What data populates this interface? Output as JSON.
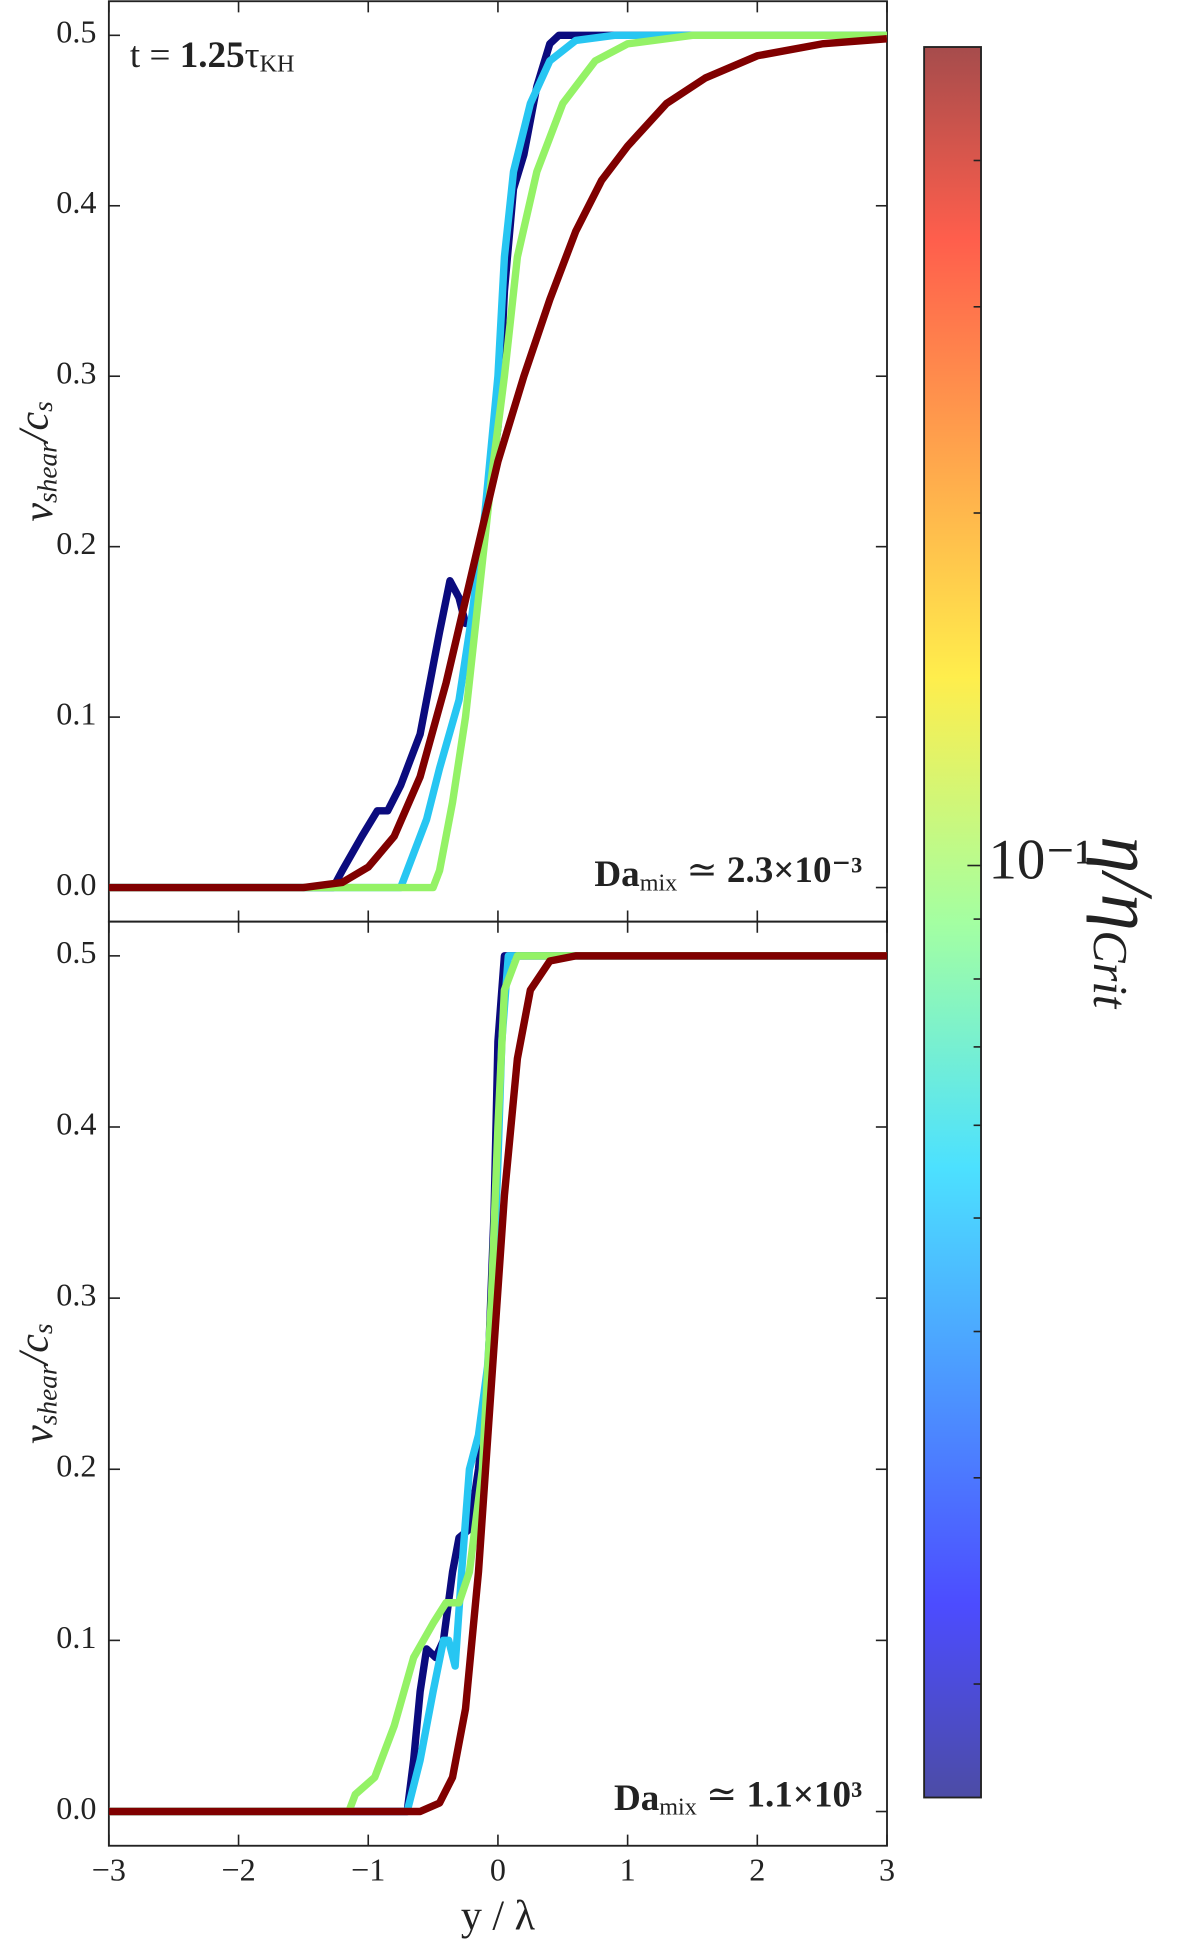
{
  "chart_data": [
    {
      "type": "line",
      "ylabel": [
        "v",
        "shear",
        "/c",
        "s"
      ],
      "annotation": [
        "t = ",
        "1.25",
        "τ",
        "KH"
      ],
      "note": [
        "Da",
        "mix",
        " ≃ ",
        "2.3×10⁻³"
      ],
      "ylim": [
        -0.02,
        0.52
      ],
      "yticks": [
        {
          "value": 0,
          "label": "0.0"
        },
        0.1,
        0.2,
        0.3,
        0.4,
        0.5
      ],
      "series": [
        {
          "color": "#0b0b7e",
          "x": [
            -3,
            -1.27,
            -1.2,
            -1.05,
            -0.93,
            -0.85,
            -0.75,
            -0.6,
            -0.5,
            -0.45,
            -0.37,
            -0.3,
            -0.25,
            -0.18,
            -0.1,
            0,
            0.05,
            0.12,
            0.2,
            0.3,
            0.4,
            0.47,
            3
          ],
          "values": [
            0,
            0,
            0.01,
            0.03,
            0.045,
            0.045,
            0.06,
            0.09,
            0.13,
            0.15,
            0.18,
            0.17,
            0.155,
            0.155,
            0.21,
            0.27,
            0.35,
            0.41,
            0.43,
            0.47,
            0.495,
            0.5,
            0.5
          ]
        },
        {
          "color": "#27c6f2",
          "x": [
            -3,
            -0.75,
            -0.65,
            -0.55,
            -0.45,
            -0.3,
            -0.2,
            -0.1,
            0,
            0.05,
            0.12,
            0.25,
            0.4,
            0.6,
            0.9,
            3
          ],
          "values": [
            0,
            0,
            0.02,
            0.04,
            0.07,
            0.11,
            0.16,
            0.22,
            0.3,
            0.37,
            0.42,
            0.46,
            0.485,
            0.497,
            0.5,
            0.5
          ]
        },
        {
          "color": "#94f266",
          "x": [
            -3,
            -0.5,
            -0.45,
            -0.35,
            -0.25,
            -0.15,
            -0.05,
            0.05,
            0.15,
            0.3,
            0.5,
            0.75,
            1.0,
            1.5,
            3
          ],
          "values": [
            0,
            0,
            0.01,
            0.05,
            0.1,
            0.17,
            0.24,
            0.3,
            0.37,
            0.42,
            0.46,
            0.485,
            0.495,
            0.5,
            0.5
          ]
        },
        {
          "color": "#800000",
          "x": [
            -3,
            -1.5,
            -1.2,
            -1.0,
            -0.8,
            -0.6,
            -0.4,
            -0.2,
            0,
            0.2,
            0.4,
            0.6,
            0.8,
            1.0,
            1.3,
            1.6,
            2.0,
            2.5,
            3
          ],
          "values": [
            0,
            0,
            0.003,
            0.012,
            0.03,
            0.065,
            0.12,
            0.185,
            0.25,
            0.3,
            0.345,
            0.385,
            0.415,
            0.435,
            0.46,
            0.475,
            0.488,
            0.495,
            0.498
          ]
        }
      ]
    },
    {
      "type": "line",
      "ylabel": [
        "v",
        "shear",
        "/c",
        "s"
      ],
      "note": [
        "Da",
        "mix",
        " ≃ ",
        "1.1×10³"
      ],
      "xlabel": "y / λ",
      "xlim": [
        -3,
        3
      ],
      "xticks": [
        {
          "value": -3,
          "label": "−3"
        },
        {
          "value": -2,
          "label": "−2"
        },
        {
          "value": -1,
          "label": "−1"
        },
        0,
        1,
        2,
        3
      ],
      "ylim": [
        -0.02,
        0.52
      ],
      "yticks": [
        {
          "value": 0,
          "label": "0.0"
        },
        0.1,
        0.2,
        0.3,
        0.4,
        0.5
      ],
      "series": [
        {
          "color": "#0b0b7e",
          "x": [
            -3,
            -0.7,
            -0.65,
            -0.6,
            -0.55,
            -0.48,
            -0.42,
            -0.35,
            -0.3,
            -0.22,
            -0.15,
            -0.08,
            -0.03,
            0,
            0.05,
            3
          ],
          "values": [
            0,
            0,
            0.03,
            0.07,
            0.095,
            0.09,
            0.1,
            0.14,
            0.16,
            0.165,
            0.2,
            0.25,
            0.35,
            0.45,
            0.5,
            0.5
          ]
        },
        {
          "color": "#27c6f2",
          "x": [
            -3,
            -0.7,
            -0.6,
            -0.5,
            -0.42,
            -0.38,
            -0.33,
            -0.28,
            -0.22,
            -0.15,
            -0.08,
            -0.03,
            0,
            0.03,
            0.08,
            3
          ],
          "values": [
            0,
            0,
            0.03,
            0.07,
            0.1,
            0.1,
            0.085,
            0.14,
            0.2,
            0.22,
            0.26,
            0.32,
            0.38,
            0.45,
            0.5,
            0.5
          ]
        },
        {
          "color": "#94f266",
          "x": [
            -3,
            -1.15,
            -1.1,
            -0.95,
            -0.8,
            -0.65,
            -0.5,
            -0.4,
            -0.3,
            -0.22,
            -0.12,
            -0.05,
            0,
            0.05,
            0.15,
            3
          ],
          "values": [
            0,
            0,
            0.01,
            0.02,
            0.05,
            0.09,
            0.11,
            0.122,
            0.122,
            0.14,
            0.2,
            0.3,
            0.4,
            0.48,
            0.5,
            0.5
          ]
        },
        {
          "color": "#800000",
          "x": [
            -3,
            -0.6,
            -0.45,
            -0.35,
            -0.25,
            -0.15,
            -0.05,
            0.05,
            0.15,
            0.25,
            0.4,
            0.6,
            3
          ],
          "values": [
            0,
            0,
            0.005,
            0.02,
            0.06,
            0.14,
            0.25,
            0.36,
            0.44,
            0.48,
            0.497,
            0.5,
            0.5
          ]
        }
      ]
    }
  ],
  "colorbar": {
    "label": [
      "η/η",
      "Crit"
    ],
    "clim": [
      0.016,
      0.5
    ],
    "log": true,
    "ticks": [
      {
        "value": 0.1,
        "label": "10⁻¹"
      }
    ],
    "minor_ticks": [
      0.02,
      0.03,
      0.04,
      0.05,
      0.06,
      0.07,
      0.08,
      0.09,
      0.2,
      0.3,
      0.4
    ]
  }
}
